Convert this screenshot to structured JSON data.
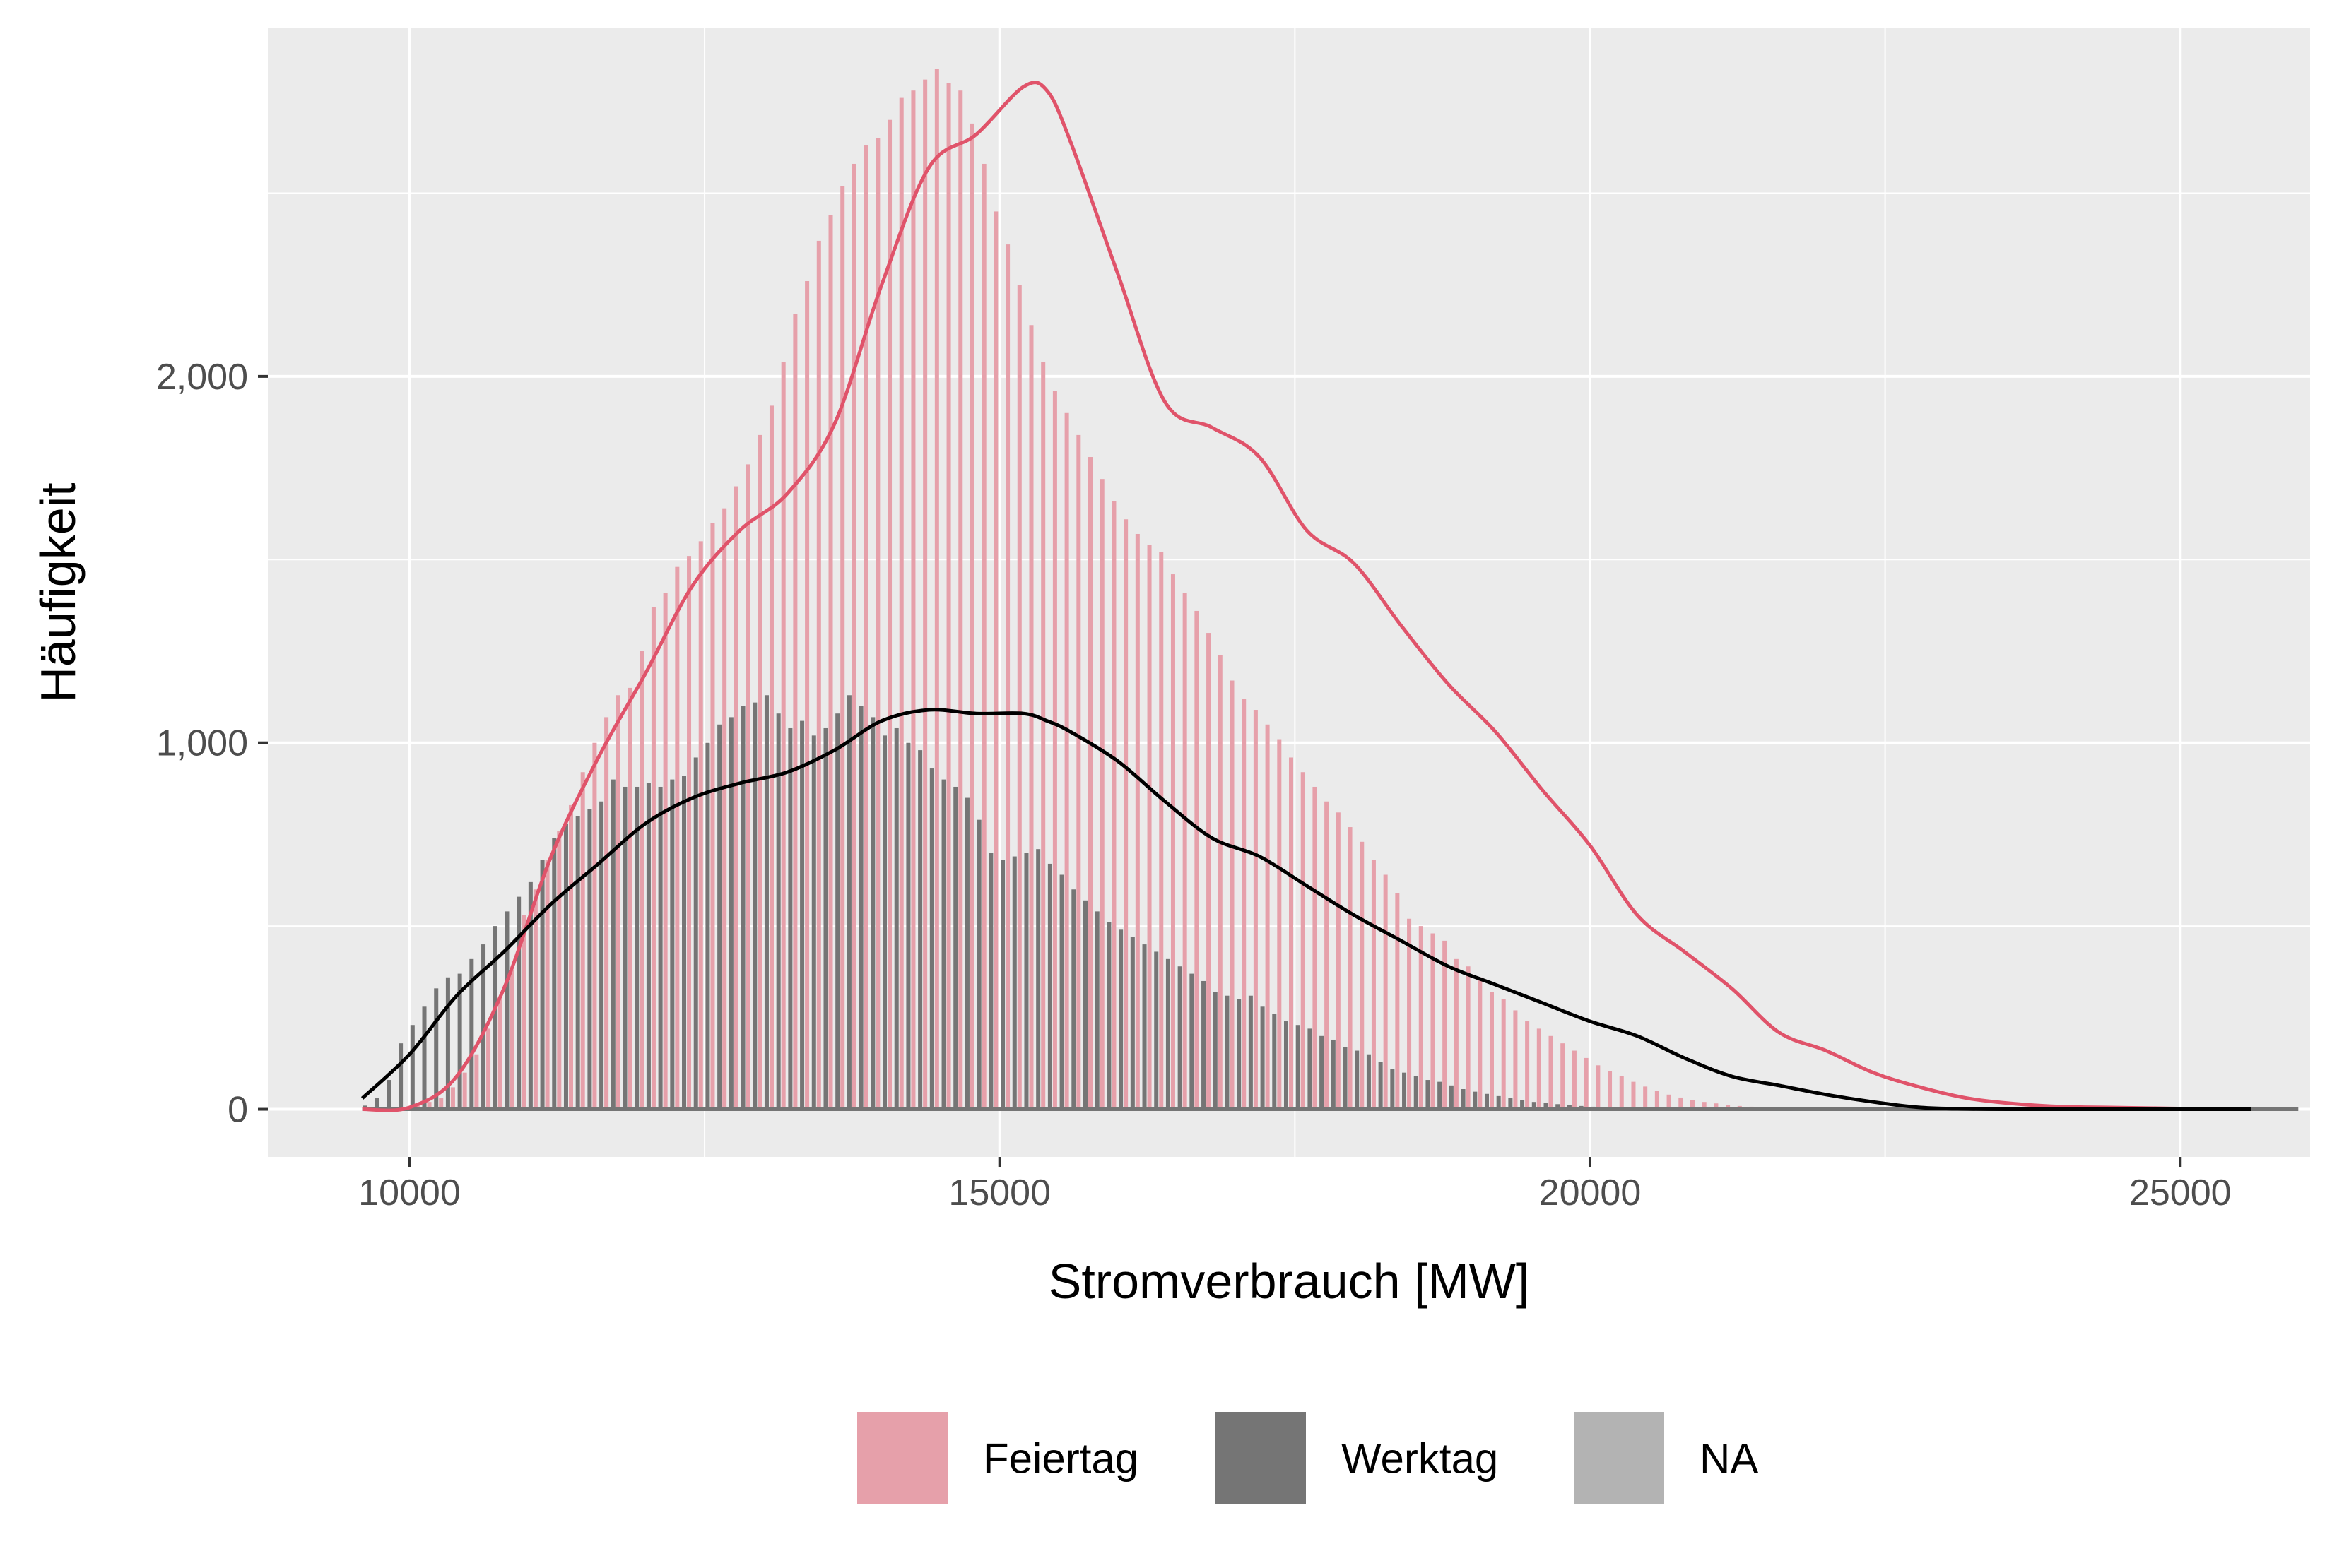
{
  "chart_data": {
    "type": "bar",
    "subtype": "histogram with density overlay",
    "title": "",
    "xlabel": "Stromverbrauch [MW]",
    "ylabel": "Häufigkeit",
    "xlim": [
      8800,
      26100
    ],
    "ylim": [
      -130,
      2950
    ],
    "x_ticks": [
      10000,
      15000,
      20000,
      25000
    ],
    "x_tick_labels": [
      "10000",
      "15000",
      "20000",
      "25000"
    ],
    "y_ticks": [
      0,
      1000,
      2000
    ],
    "y_tick_labels": [
      "0",
      "1,000",
      "2,000"
    ],
    "grid": true,
    "legend_position": "bottom",
    "colors": {
      "panel": "#ebebeb",
      "grid": "#ffffff",
      "feiertag_bar": "#e6a0aa",
      "feiertag_line": "#e0536a",
      "werktag_bar": "#757575",
      "werktag_line": "#000000",
      "na_key": "#b3b3b3"
    },
    "bin_start": 9600,
    "bin_width": 100,
    "legend": [
      {
        "key": "feiertag",
        "label": "Feiertag",
        "color": "#e6a0aa"
      },
      {
        "key": "werktag",
        "label": "Werktag",
        "color": "#757575"
      },
      {
        "key": "na",
        "label": "NA",
        "color": "#b3b3b3"
      }
    ],
    "series": [
      {
        "name": "Feiertag",
        "values": [
          0,
          0,
          0,
          5,
          10,
          20,
          30,
          60,
          100,
          150,
          220,
          300,
          380,
          530,
          600,
          680,
          760,
          830,
          920,
          1000,
          1070,
          1130,
          1150,
          1250,
          1370,
          1410,
          1480,
          1510,
          1550,
          1600,
          1640,
          1700,
          1760,
          1840,
          1920,
          2040,
          2170,
          2260,
          2370,
          2440,
          2520,
          2580,
          2630,
          2650,
          2700,
          2760,
          2780,
          2810,
          2840,
          2800,
          2780,
          2690,
          2580,
          2450,
          2360,
          2250,
          2140,
          2040,
          1960,
          1900,
          1840,
          1780,
          1720,
          1660,
          1610,
          1570,
          1540,
          1520,
          1460,
          1410,
          1360,
          1300,
          1240,
          1170,
          1120,
          1090,
          1050,
          1010,
          960,
          920,
          880,
          840,
          810,
          770,
          730,
          680,
          640,
          590,
          520,
          500,
          480,
          460,
          410,
          390,
          360,
          320,
          300,
          270,
          240,
          220,
          200,
          180,
          160,
          140,
          120,
          105,
          90,
          75,
          62,
          50,
          40,
          32,
          25,
          20,
          16,
          12,
          9,
          7,
          5,
          4,
          3,
          2,
          2,
          1,
          1,
          0,
          0,
          0,
          0,
          0,
          0,
          0,
          0,
          0,
          0,
          0,
          0,
          0,
          0,
          0,
          0,
          0,
          0,
          0,
          0,
          0,
          0,
          0,
          0,
          0,
          0,
          0,
          0,
          0,
          0,
          0,
          0,
          0,
          0,
          0,
          0,
          0,
          0,
          0
        ]
      },
      {
        "name": "Werktag",
        "values": [
          10,
          30,
          80,
          180,
          230,
          280,
          330,
          360,
          370,
          410,
          450,
          500,
          540,
          580,
          620,
          680,
          740,
          780,
          800,
          820,
          840,
          900,
          880,
          880,
          890,
          880,
          900,
          910,
          960,
          1000,
          1050,
          1070,
          1100,
          1110,
          1130,
          1080,
          1040,
          1060,
          1020,
          1040,
          1080,
          1130,
          1100,
          1070,
          1020,
          1040,
          1000,
          980,
          930,
          900,
          880,
          850,
          790,
          700,
          680,
          690,
          700,
          710,
          670,
          640,
          600,
          570,
          540,
          510,
          490,
          470,
          450,
          430,
          410,
          390,
          370,
          350,
          320,
          310,
          300,
          310,
          280,
          260,
          240,
          230,
          220,
          200,
          190,
          170,
          160,
          150,
          130,
          110,
          100,
          90,
          80,
          75,
          65,
          55,
          48,
          42,
          36,
          30,
          25,
          20,
          17,
          14,
          11,
          9,
          7,
          5,
          4,
          3,
          2,
          2,
          1,
          1,
          1,
          0,
          0,
          0,
          0,
          0,
          0,
          0,
          0,
          0,
          0,
          0,
          0,
          0,
          0,
          0,
          0,
          0,
          0,
          0,
          0,
          0,
          0,
          0,
          0,
          0,
          0,
          0,
          0,
          0,
          0,
          0,
          0,
          0,
          0,
          0,
          0,
          0,
          0,
          0,
          0,
          0,
          0,
          0,
          0,
          0,
          0,
          0,
          0,
          0,
          0
        ]
      }
    ],
    "density_lines": [
      {
        "name": "Feiertag",
        "x": [
          9600,
          10000,
          10400,
          10800,
          11200,
          11600,
          12000,
          12400,
          12800,
          13200,
          13600,
          14000,
          14400,
          14800,
          15200,
          15400,
          15600,
          16000,
          16400,
          16800,
          17200,
          17600,
          18000,
          18400,
          18800,
          19200,
          19600,
          20000,
          20400,
          20800,
          21200,
          21600,
          22000,
          22400,
          22800,
          23200,
          23600,
          24000,
          24400,
          24800,
          25200,
          25600
        ],
        "y": [
          0,
          5,
          90,
          330,
          690,
          960,
          1190,
          1430,
          1580,
          1680,
          1870,
          2250,
          2570,
          2660,
          2790,
          2780,
          2640,
          2280,
          1930,
          1860,
          1780,
          1580,
          1490,
          1320,
          1160,
          1030,
          870,
          720,
          530,
          430,
          330,
          210,
          160,
          100,
          60,
          30,
          15,
          7,
          5,
          3,
          1,
          0
        ]
      },
      {
        "name": "Werktag",
        "x": [
          9600,
          10000,
          10400,
          10800,
          11200,
          11600,
          12000,
          12400,
          12800,
          13200,
          13600,
          14000,
          14400,
          14800,
          15200,
          15400,
          15600,
          16000,
          16400,
          16800,
          17200,
          17600,
          18000,
          18400,
          18800,
          19200,
          19600,
          20000,
          20400,
          20800,
          21200,
          21600,
          22000,
          22400,
          22800,
          23200,
          23600,
          24000,
          24400,
          24800,
          25200,
          25600
        ],
        "y": [
          30,
          150,
          310,
          430,
          560,
          670,
          780,
          850,
          890,
          920,
          980,
          1060,
          1090,
          1080,
          1080,
          1060,
          1030,
          950,
          840,
          740,
          690,
          610,
          530,
          460,
          390,
          340,
          290,
          240,
          200,
          140,
          90,
          65,
          40,
          20,
          5,
          1,
          0,
          0,
          0,
          0,
          0,
          0
        ]
      }
    ]
  }
}
